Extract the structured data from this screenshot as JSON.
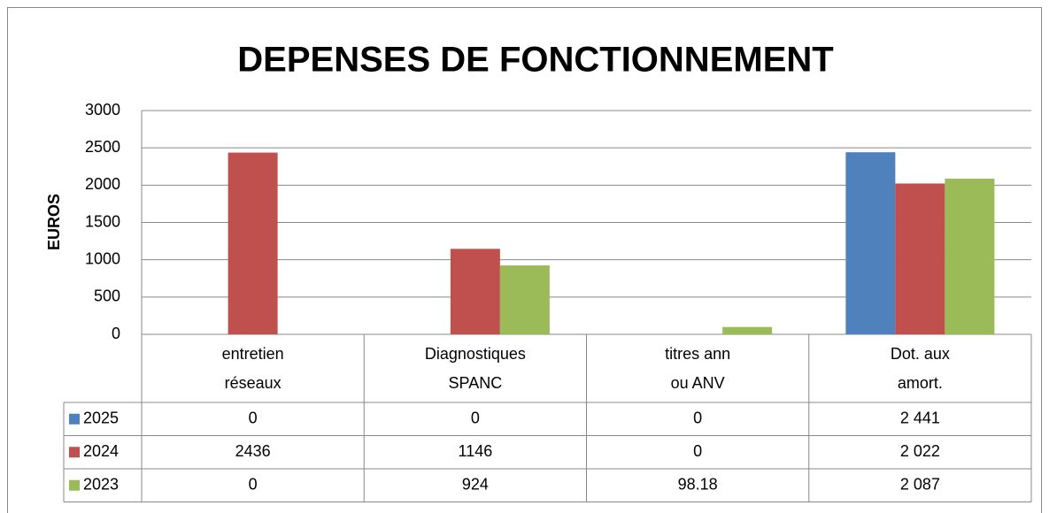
{
  "chart_data": {
    "type": "bar",
    "title": "DEPENSES DE FONCTIONNEMENT",
    "ylabel": "EUROS",
    "categories": [
      "entretien\nréseaux",
      "Diagnostiques\nSPANC",
      "titres ann\nou ANV",
      "Dot. aux\namort."
    ],
    "series": [
      {
        "name": "2025",
        "color": "#4f81bd",
        "values": [
          0,
          0,
          0,
          2441
        ],
        "value_labels": [
          "0",
          "0",
          "0",
          "2 441"
        ]
      },
      {
        "name": "2024",
        "color": "#c0504d",
        "values": [
          2436,
          1146,
          0,
          2022
        ],
        "value_labels": [
          "2436",
          "1146",
          "0",
          "2 022"
        ]
      },
      {
        "name": "2023",
        "color": "#9bbb59",
        "values": [
          0,
          924,
          98.18,
          2087
        ],
        "value_labels": [
          "0",
          "924",
          "98.18",
          "2 087"
        ]
      }
    ],
    "ylim": [
      0,
      3000
    ],
    "yticks": [
      0,
      500,
      1000,
      1500,
      2000,
      2500,
      3000
    ],
    "grid": true
  }
}
